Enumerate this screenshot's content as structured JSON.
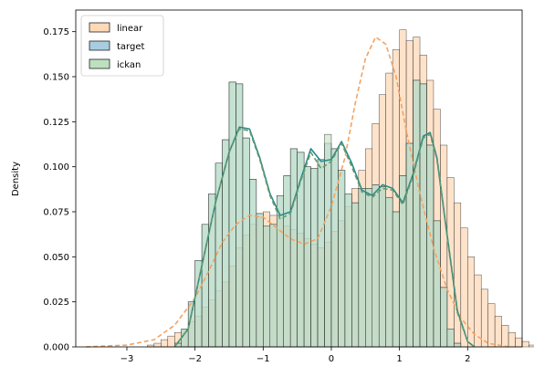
{
  "chart_data": {
    "type": "histogram",
    "title": "",
    "xlabel": "",
    "ylabel": "Density",
    "xlim": [
      -3.75,
      2.8
    ],
    "ylim": [
      0,
      0.187
    ],
    "xticks": [
      -3,
      -2,
      -1,
      0,
      1,
      2
    ],
    "yticks": [
      0.0,
      0.025,
      0.05,
      0.075,
      0.1,
      0.125,
      0.15,
      0.175
    ],
    "ytick_labels": [
      "0.000",
      "0.025",
      "0.050",
      "0.075",
      "0.100",
      "0.125",
      "0.150",
      "0.175"
    ],
    "bin_width": 0.1,
    "legend": {
      "position": "top-left",
      "entries": [
        "linear",
        "target",
        "ickan"
      ]
    },
    "series": [
      {
        "name": "linear",
        "color": "#f4a261",
        "fill": "#fdd9b8",
        "kde_style": "dashed",
        "bins_start": -3.6,
        "values": [
          0.0,
          0.0,
          0.0,
          0.0,
          0.0,
          0.0,
          0.0,
          0.0,
          0.0,
          0.001,
          0.002,
          0.004,
          0.006,
          0.008,
          0.01,
          0.014,
          0.017,
          0.022,
          0.026,
          0.031,
          0.036,
          0.045,
          0.055,
          0.062,
          0.068,
          0.072,
          0.075,
          0.073,
          0.071,
          0.067,
          0.065,
          0.063,
          0.06,
          0.057,
          0.055,
          0.058,
          0.064,
          0.07,
          0.078,
          0.088,
          0.098,
          0.11,
          0.124,
          0.14,
          0.152,
          0.165,
          0.176,
          0.17,
          0.172,
          0.162,
          0.148,
          0.132,
          0.112,
          0.094,
          0.08,
          0.066,
          0.05,
          0.04,
          0.032,
          0.024,
          0.017,
          0.012,
          0.008,
          0.005,
          0.003,
          0.001,
          0.0
        ],
        "kde": [
          [
            -3.6,
            0.0
          ],
          [
            -3.0,
            0.001
          ],
          [
            -2.6,
            0.004
          ],
          [
            -2.3,
            0.012
          ],
          [
            -2.0,
            0.027
          ],
          [
            -1.8,
            0.042
          ],
          [
            -1.6,
            0.058
          ],
          [
            -1.4,
            0.068
          ],
          [
            -1.2,
            0.073
          ],
          [
            -1.0,
            0.072
          ],
          [
            -0.8,
            0.066
          ],
          [
            -0.6,
            0.06
          ],
          [
            -0.4,
            0.057
          ],
          [
            -0.2,
            0.06
          ],
          [
            0.0,
            0.078
          ],
          [
            0.2,
            0.105
          ],
          [
            0.35,
            0.135
          ],
          [
            0.5,
            0.16
          ],
          [
            0.65,
            0.172
          ],
          [
            0.8,
            0.168
          ],
          [
            0.95,
            0.15
          ],
          [
            1.1,
            0.12
          ],
          [
            1.3,
            0.085
          ],
          [
            1.5,
            0.055
          ],
          [
            1.7,
            0.032
          ],
          [
            1.9,
            0.016
          ],
          [
            2.1,
            0.007
          ],
          [
            2.3,
            0.002
          ],
          [
            2.6,
            0.0
          ]
        ]
      },
      {
        "name": "target",
        "color": "#2a8a8a",
        "fill": "#a8cde0",
        "kde_style": "solid",
        "bins_start": -2.3,
        "values": [
          0.002,
          0.01,
          0.025,
          0.048,
          0.068,
          0.085,
          0.102,
          0.115,
          0.147,
          0.146,
          0.116,
          0.093,
          0.074,
          0.067,
          0.068,
          0.084,
          0.095,
          0.11,
          0.108,
          0.1,
          0.099,
          0.104,
          0.113,
          0.11,
          0.098,
          0.085,
          0.08,
          0.088,
          0.088,
          0.09,
          0.089,
          0.083,
          0.075,
          0.095,
          0.113,
          0.148,
          0.146,
          0.112,
          0.07,
          0.033,
          0.01,
          0.002
        ],
        "kde": [
          [
            -2.3,
            0.0
          ],
          [
            -2.1,
            0.01
          ],
          [
            -1.9,
            0.045
          ],
          [
            -1.7,
            0.08
          ],
          [
            -1.5,
            0.108
          ],
          [
            -1.35,
            0.122
          ],
          [
            -1.2,
            0.121
          ],
          [
            -1.05,
            0.105
          ],
          [
            -0.9,
            0.085
          ],
          [
            -0.75,
            0.073
          ],
          [
            -0.6,
            0.075
          ],
          [
            -0.45,
            0.093
          ],
          [
            -0.3,
            0.11
          ],
          [
            -0.15,
            0.103
          ],
          [
            0.0,
            0.104
          ],
          [
            0.15,
            0.114
          ],
          [
            0.3,
            0.102
          ],
          [
            0.45,
            0.087
          ],
          [
            0.6,
            0.084
          ],
          [
            0.75,
            0.09
          ],
          [
            0.9,
            0.088
          ],
          [
            1.05,
            0.08
          ],
          [
            1.2,
            0.096
          ],
          [
            1.35,
            0.117
          ],
          [
            1.45,
            0.119
          ],
          [
            1.55,
            0.105
          ],
          [
            1.7,
            0.062
          ],
          [
            1.85,
            0.02
          ],
          [
            2.0,
            0.003
          ],
          [
            2.1,
            0.0
          ]
        ]
      },
      {
        "name": "ickan",
        "color": "#6a9a6a",
        "fill": "#bde0be",
        "kde_style": "dashed",
        "bins_start": -2.3,
        "values": [
          0.002,
          0.01,
          0.025,
          0.048,
          0.068,
          0.085,
          0.102,
          0.115,
          0.147,
          0.146,
          0.116,
          0.093,
          0.074,
          0.067,
          0.068,
          0.084,
          0.095,
          0.11,
          0.108,
          0.1,
          0.099,
          0.104,
          0.118,
          0.11,
          0.098,
          0.085,
          0.08,
          0.088,
          0.088,
          0.09,
          0.089,
          0.083,
          0.075,
          0.095,
          0.113,
          0.148,
          0.146,
          0.112,
          0.07,
          0.033,
          0.01,
          0.002
        ],
        "kde": [
          [
            -2.3,
            0.0
          ],
          [
            -2.1,
            0.01
          ],
          [
            -1.9,
            0.045
          ],
          [
            -1.7,
            0.08
          ],
          [
            -1.5,
            0.108
          ],
          [
            -1.35,
            0.121
          ],
          [
            -1.2,
            0.12
          ],
          [
            -1.05,
            0.104
          ],
          [
            -0.9,
            0.084
          ],
          [
            -0.75,
            0.071
          ],
          [
            -0.6,
            0.074
          ],
          [
            -0.45,
            0.092
          ],
          [
            -0.3,
            0.108
          ],
          [
            -0.15,
            0.099
          ],
          [
            0.0,
            0.103
          ],
          [
            0.15,
            0.113
          ],
          [
            0.3,
            0.1
          ],
          [
            0.45,
            0.086
          ],
          [
            0.6,
            0.083
          ],
          [
            0.75,
            0.088
          ],
          [
            0.9,
            0.087
          ],
          [
            1.05,
            0.079
          ],
          [
            1.2,
            0.095
          ],
          [
            1.35,
            0.116
          ],
          [
            1.45,
            0.118
          ],
          [
            1.55,
            0.104
          ],
          [
            1.7,
            0.061
          ],
          [
            1.85,
            0.019
          ],
          [
            2.0,
            0.003
          ],
          [
            2.1,
            0.0
          ]
        ]
      }
    ]
  }
}
